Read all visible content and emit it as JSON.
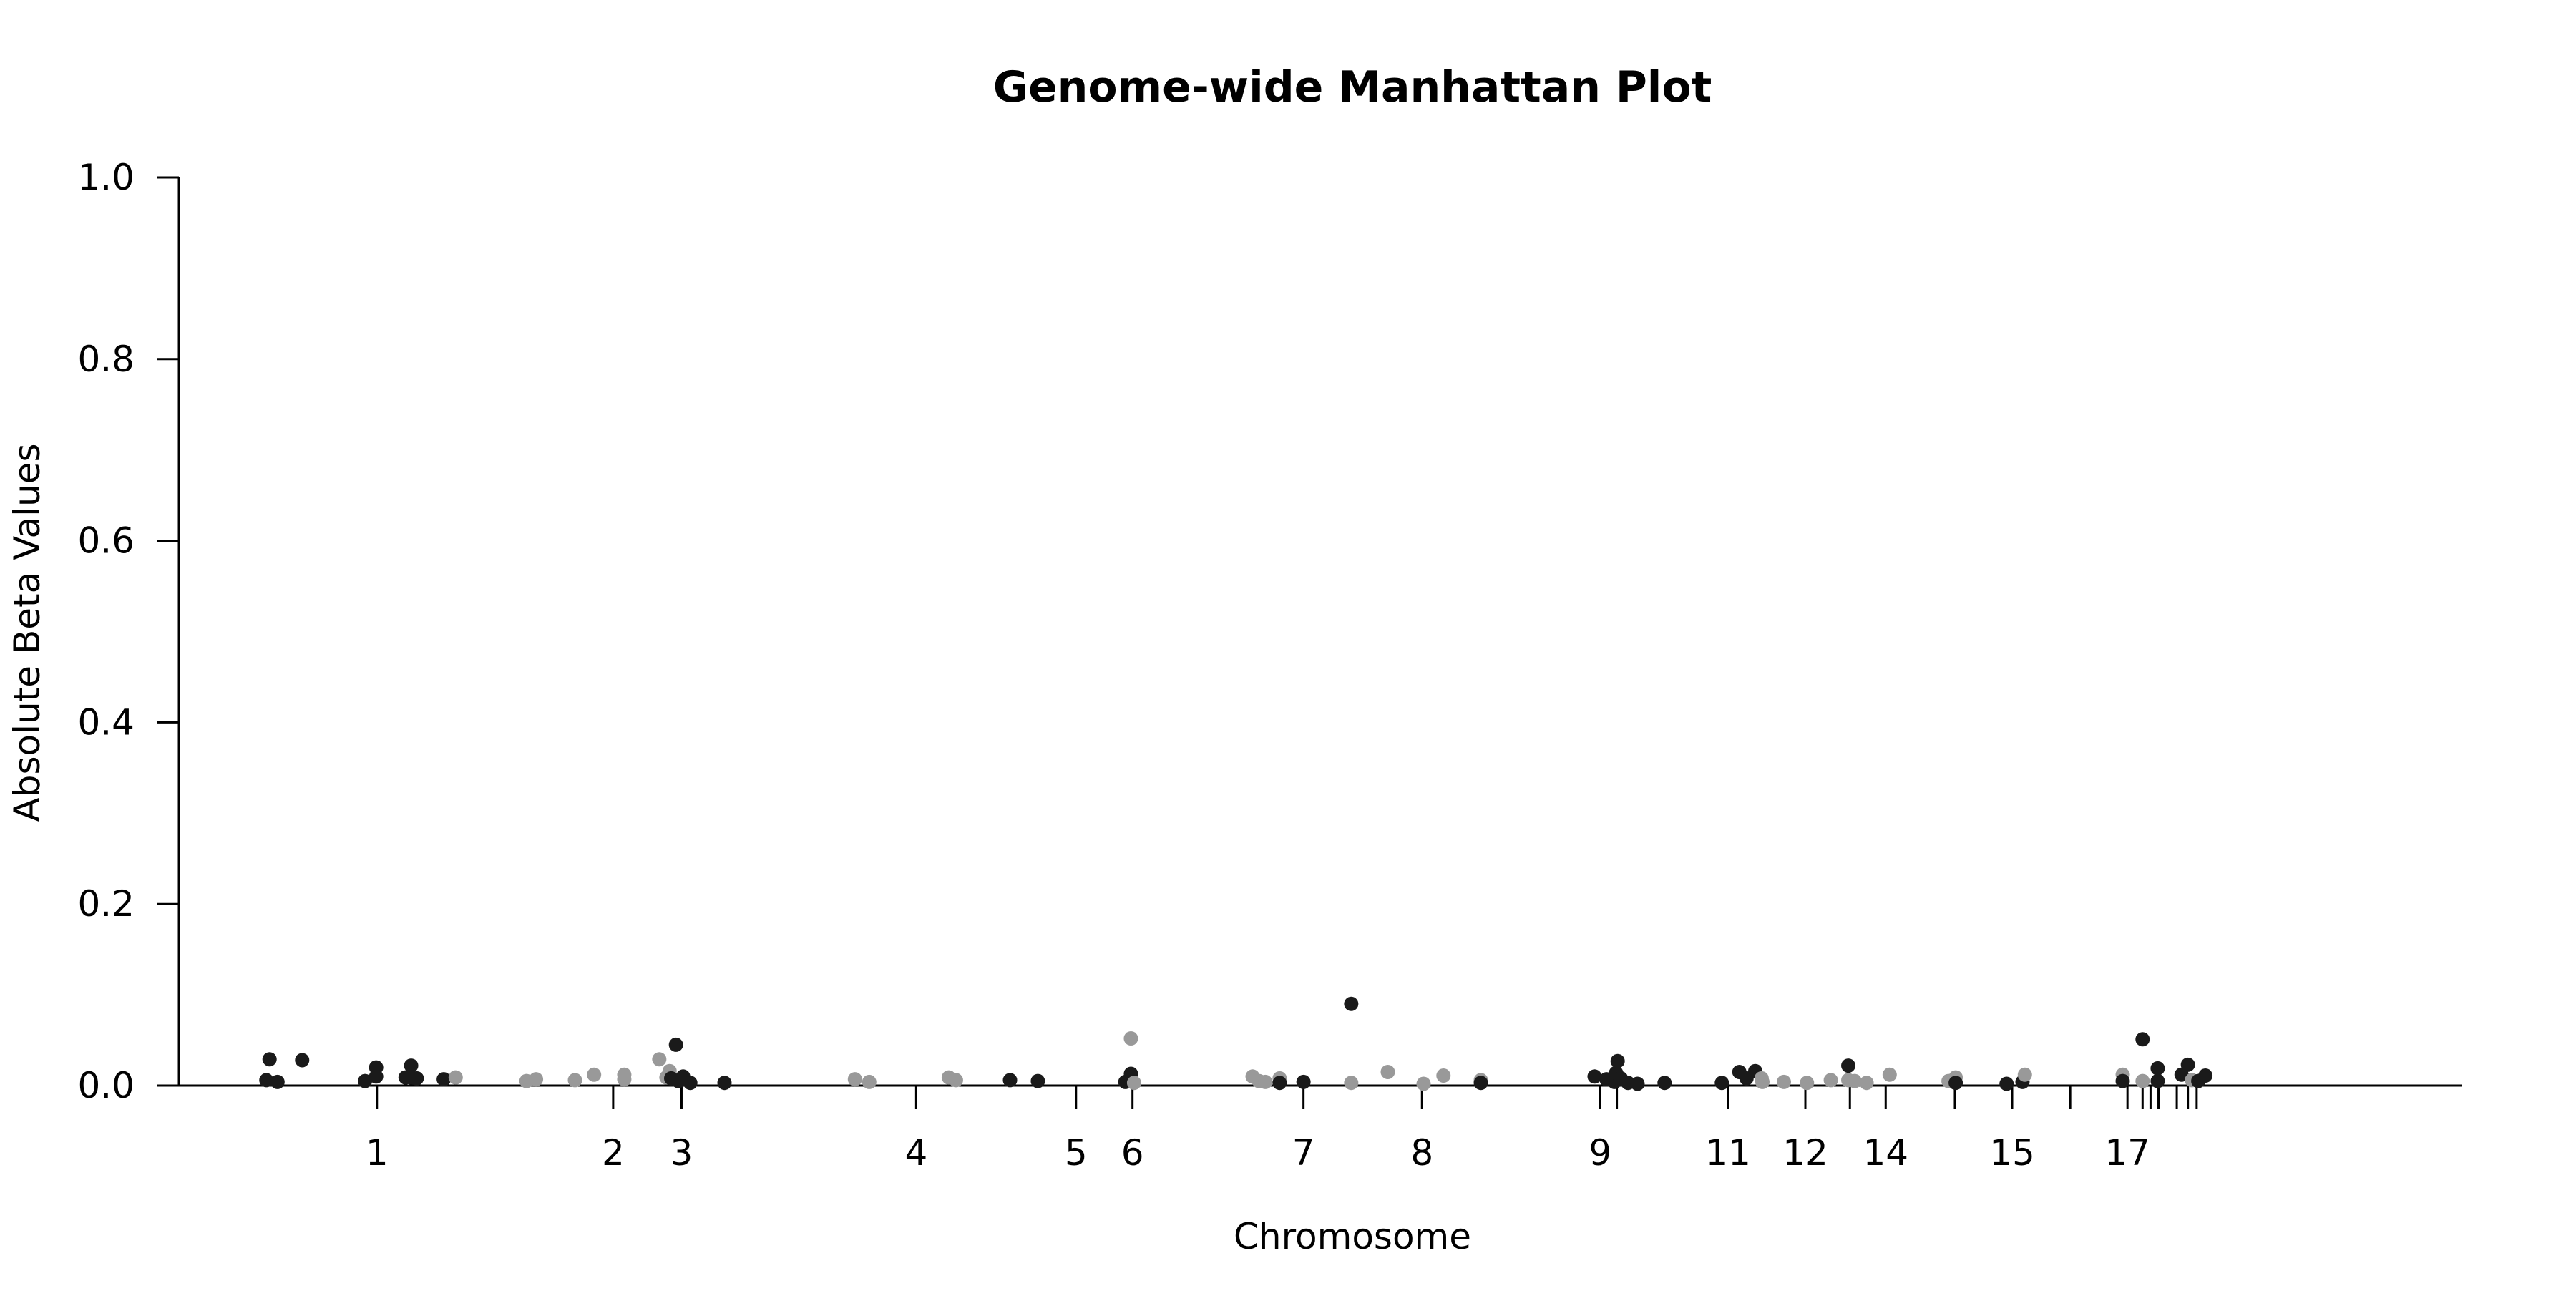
{
  "chart_data": {
    "type": "scatter",
    "title": "Genome-wide Manhattan Plot",
    "xlabel": "Chromosome",
    "ylabel": "Absolute Beta Values",
    "ylim": [
      0,
      1.0
    ],
    "yticks": [
      "0.0",
      "0.2",
      "0.4",
      "0.6",
      "0.8",
      "1.0"
    ],
    "xlim": [
      0,
      2870
    ],
    "grid": false,
    "colors": {
      "dark": "#1a1a1a",
      "light": "#999999"
    },
    "chromosome_ticks": [
      {
        "label": "1",
        "pos": 249
      },
      {
        "label": "2",
        "pos": 546
      },
      {
        "label": "3",
        "pos": 632
      },
      {
        "label": "4",
        "pos": 927
      },
      {
        "label": "5",
        "pos": 1128
      },
      {
        "label": "6",
        "pos": 1199
      },
      {
        "label": "7",
        "pos": 1414
      },
      {
        "label": "8",
        "pos": 1563
      },
      {
        "label": "9",
        "pos": 1787
      },
      {
        "label": "",
        "pos": 1808
      },
      {
        "label": "11",
        "pos": 1948
      },
      {
        "label": "12",
        "pos": 2045
      },
      {
        "label": "",
        "pos": 2101
      },
      {
        "label": "14",
        "pos": 2146
      },
      {
        "label": "",
        "pos": 2233
      },
      {
        "label": "15",
        "pos": 2305
      },
      {
        "label": "",
        "pos": 2378
      },
      {
        "label": "17",
        "pos": 2450
      },
      {
        "label": "",
        "pos": 2469
      },
      {
        "label": "",
        "pos": 2479
      },
      {
        "label": "",
        "pos": 2489
      },
      {
        "label": "",
        "pos": 2512
      },
      {
        "label": "",
        "pos": 2526
      },
      {
        "label": "",
        "pos": 2537
      }
    ],
    "points": [
      {
        "x": 110,
        "y": 0.006,
        "c": "dark"
      },
      {
        "x": 114,
        "y": 0.029,
        "c": "dark"
      },
      {
        "x": 124,
        "y": 0.004,
        "c": "dark"
      },
      {
        "x": 155,
        "y": 0.028,
        "c": "dark"
      },
      {
        "x": 234,
        "y": 0.005,
        "c": "dark"
      },
      {
        "x": 248,
        "y": 0.02,
        "c": "dark"
      },
      {
        "x": 248,
        "y": 0.01,
        "c": "dark"
      },
      {
        "x": 285,
        "y": 0.009,
        "c": "dark"
      },
      {
        "x": 292,
        "y": 0.022,
        "c": "dark"
      },
      {
        "x": 292,
        "y": 0.009,
        "c": "dark"
      },
      {
        "x": 299,
        "y": 0.008,
        "c": "dark"
      },
      {
        "x": 333,
        "y": 0.007,
        "c": "dark"
      },
      {
        "x": 348,
        "y": 0.009,
        "c": "light"
      },
      {
        "x": 437,
        "y": 0.005,
        "c": "light"
      },
      {
        "x": 449,
        "y": 0.007,
        "c": "light"
      },
      {
        "x": 498,
        "y": 0.006,
        "c": "light"
      },
      {
        "x": 522,
        "y": 0.012,
        "c": "light"
      },
      {
        "x": 560,
        "y": 0.012,
        "c": "light"
      },
      {
        "x": 560,
        "y": 0.007,
        "c": "light"
      },
      {
        "x": 604,
        "y": 0.029,
        "c": "light"
      },
      {
        "x": 617,
        "y": 0.016,
        "c": "light"
      },
      {
        "x": 613,
        "y": 0.009,
        "c": "light"
      },
      {
        "x": 619,
        "y": 0.008,
        "c": "dark"
      },
      {
        "x": 625,
        "y": 0.045,
        "c": "dark"
      },
      {
        "x": 628,
        "y": 0.005,
        "c": "dark"
      },
      {
        "x": 634,
        "y": 0.01,
        "c": "dark"
      },
      {
        "x": 643,
        "y": 0.003,
        "c": "dark"
      },
      {
        "x": 686,
        "y": 0.003,
        "c": "dark"
      },
      {
        "x": 850,
        "y": 0.007,
        "c": "light"
      },
      {
        "x": 868,
        "y": 0.004,
        "c": "light"
      },
      {
        "x": 968,
        "y": 0.009,
        "c": "light"
      },
      {
        "x": 977,
        "y": 0.006,
        "c": "light"
      },
      {
        "x": 1045,
        "y": 0.006,
        "c": "dark"
      },
      {
        "x": 1080,
        "y": 0.005,
        "c": "dark"
      },
      {
        "x": 1190,
        "y": 0.004,
        "c": "dark"
      },
      {
        "x": 1197,
        "y": 0.052,
        "c": "light"
      },
      {
        "x": 1197,
        "y": 0.013,
        "c": "dark"
      },
      {
        "x": 1201,
        "y": 0.003,
        "c": "light"
      },
      {
        "x": 1350,
        "y": 0.01,
        "c": "light"
      },
      {
        "x": 1358,
        "y": 0.005,
        "c": "light"
      },
      {
        "x": 1366,
        "y": 0.004,
        "c": "light"
      },
      {
        "x": 1384,
        "y": 0.008,
        "c": "light"
      },
      {
        "x": 1384,
        "y": 0.003,
        "c": "dark"
      },
      {
        "x": 1414,
        "y": 0.004,
        "c": "dark"
      },
      {
        "x": 1474,
        "y": 0.09,
        "c": "dark"
      },
      {
        "x": 1474,
        "y": 0.003,
        "c": "light"
      },
      {
        "x": 1520,
        "y": 0.015,
        "c": "light"
      },
      {
        "x": 1565,
        "y": 0.002,
        "c": "light"
      },
      {
        "x": 1590,
        "y": 0.011,
        "c": "light"
      },
      {
        "x": 1637,
        "y": 0.006,
        "c": "light"
      },
      {
        "x": 1637,
        "y": 0.003,
        "c": "dark"
      },
      {
        "x": 1780,
        "y": 0.01,
        "c": "dark"
      },
      {
        "x": 1795,
        "y": 0.007,
        "c": "dark"
      },
      {
        "x": 1805,
        "y": 0.004,
        "c": "dark"
      },
      {
        "x": 1807,
        "y": 0.014,
        "c": "dark"
      },
      {
        "x": 1809,
        "y": 0.027,
        "c": "dark"
      },
      {
        "x": 1813,
        "y": 0.008,
        "c": "dark"
      },
      {
        "x": 1822,
        "y": 0.003,
        "c": "dark"
      },
      {
        "x": 1834,
        "y": 0.002,
        "c": "dark"
      },
      {
        "x": 1868,
        "y": 0.003,
        "c": "dark"
      },
      {
        "x": 1940,
        "y": 0.003,
        "c": "dark"
      },
      {
        "x": 1962,
        "y": 0.015,
        "c": "dark"
      },
      {
        "x": 1971,
        "y": 0.008,
        "c": "dark"
      },
      {
        "x": 1982,
        "y": 0.016,
        "c": "dark"
      },
      {
        "x": 1990,
        "y": 0.008,
        "c": "light"
      },
      {
        "x": 1991,
        "y": 0.004,
        "c": "light"
      },
      {
        "x": 2018,
        "y": 0.004,
        "c": "light"
      },
      {
        "x": 2047,
        "y": 0.003,
        "c": "light"
      },
      {
        "x": 2077,
        "y": 0.006,
        "c": "light"
      },
      {
        "x": 2099,
        "y": 0.022,
        "c": "dark"
      },
      {
        "x": 2099,
        "y": 0.006,
        "c": "light"
      },
      {
        "x": 2107,
        "y": 0.005,
        "c": "light"
      },
      {
        "x": 2122,
        "y": 0.003,
        "c": "light"
      },
      {
        "x": 2151,
        "y": 0.012,
        "c": "light"
      },
      {
        "x": 2225,
        "y": 0.005,
        "c": "light"
      },
      {
        "x": 2234,
        "y": 0.009,
        "c": "light"
      },
      {
        "x": 2234,
        "y": 0.003,
        "c": "dark"
      },
      {
        "x": 2298,
        "y": 0.002,
        "c": "dark"
      },
      {
        "x": 2318,
        "y": 0.004,
        "c": "dark"
      },
      {
        "x": 2321,
        "y": 0.012,
        "c": "light"
      },
      {
        "x": 2444,
        "y": 0.012,
        "c": "light"
      },
      {
        "x": 2444,
        "y": 0.005,
        "c": "dark"
      },
      {
        "x": 2469,
        "y": 0.051,
        "c": "dark"
      },
      {
        "x": 2469,
        "y": 0.005,
        "c": "light"
      },
      {
        "x": 2488,
        "y": 0.019,
        "c": "dark"
      },
      {
        "x": 2488,
        "y": 0.005,
        "c": "dark"
      },
      {
        "x": 2518,
        "y": 0.012,
        "c": "dark"
      },
      {
        "x": 2526,
        "y": 0.023,
        "c": "dark"
      },
      {
        "x": 2531,
        "y": 0.006,
        "c": "light"
      },
      {
        "x": 2539,
        "y": 0.005,
        "c": "dark"
      },
      {
        "x": 2548,
        "y": 0.011,
        "c": "dark"
      }
    ]
  }
}
